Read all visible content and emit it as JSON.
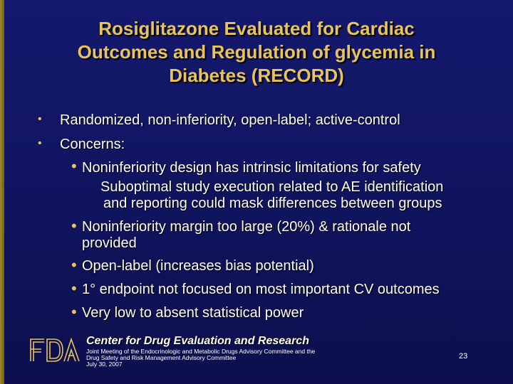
{
  "title": {
    "line1": "Rosiglitazone Evaluated for Cardiac",
    "line2": "Outcomes and Regulation of glycemia in",
    "line3": "Diabetes (RECORD)"
  },
  "body": {
    "item1": "Randomized, non-inferiority, open-label; active-control",
    "item2": "Concerns:",
    "sub1": "Noninferiority design has intrinsic limitations for safety",
    "sub1_cont1": "Suboptimal study execution related to AE identification",
    "sub1_cont2": "and reporting could mask differences between groups",
    "sub2": "Noninferiority margin too large (20%) & rationale not",
    "sub2_cont": "provided",
    "sub3": "Open-label (increases bias potential)",
    "sub4": "1° endpoint not focused on most important CV outcomes",
    "sub5": "Very low to absent statistical power"
  },
  "footer": {
    "logo_text": "FDA",
    "center_name": "Center for Drug Evaluation and Research",
    "meeting_line1": "Joint Meeting of the Endocrinologic and Metabolic Drugs Advisory Committee and the",
    "meeting_line2": "Drug Safety and Risk Management Advisory Committee",
    "meeting_line3": "July 30, 2007",
    "page_number": "23"
  },
  "colors": {
    "background": "#12176a",
    "title": "#e8c35a",
    "text": "#ffffff",
    "bullet": "#e8c35a"
  }
}
